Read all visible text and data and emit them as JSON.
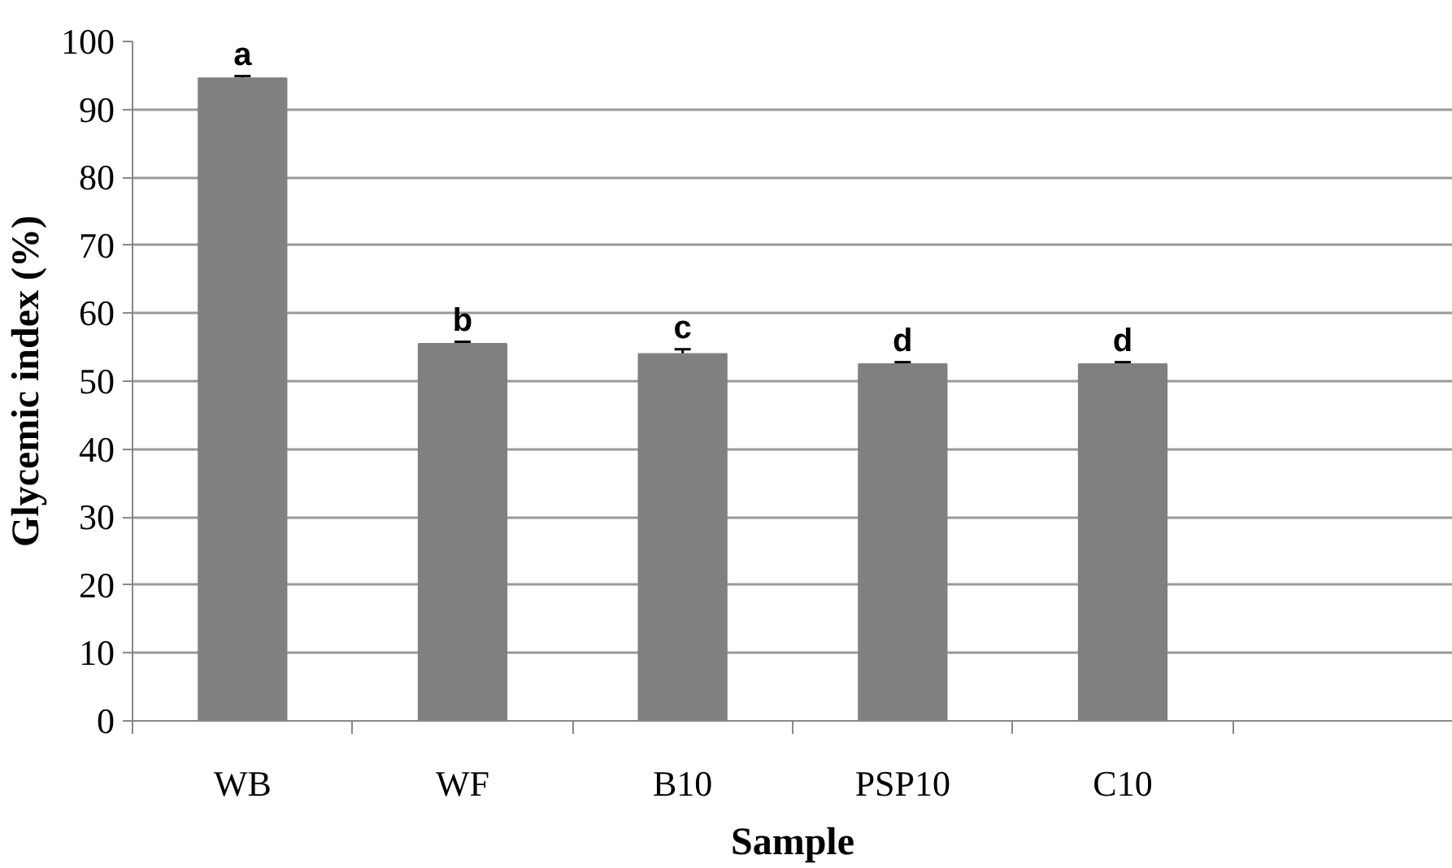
{
  "chart_data": {
    "type": "bar",
    "xlabel": "Sample",
    "ylabel": "Glycemic index (%)",
    "categories": [
      "WB",
      "WF",
      "B10",
      "PSP10",
      "C10",
      null
    ],
    "values": [
      94.6,
      55.5,
      54.0,
      52.5,
      52.5,
      null
    ],
    "errors": [
      0.3,
      0.3,
      0.7,
      0.3,
      0.3,
      null
    ],
    "color": "#808080",
    "ylim": [
      0,
      100
    ],
    "yticks": [
      0,
      10,
      20,
      30,
      40,
      50,
      60,
      70,
      80,
      90,
      100
    ],
    "grid": "y",
    "annotations": [
      {
        "text": "a",
        "x": "WB",
        "y": 94.9
      },
      {
        "text": "b",
        "x": "WF",
        "y": 55.8
      },
      {
        "text": "c",
        "x": "B10",
        "y": 54.7
      },
      {
        "text": "d",
        "x": "PSP10",
        "y": 52.8
      },
      {
        "text": "d",
        "x": "C10",
        "y": 52.8
      }
    ]
  }
}
